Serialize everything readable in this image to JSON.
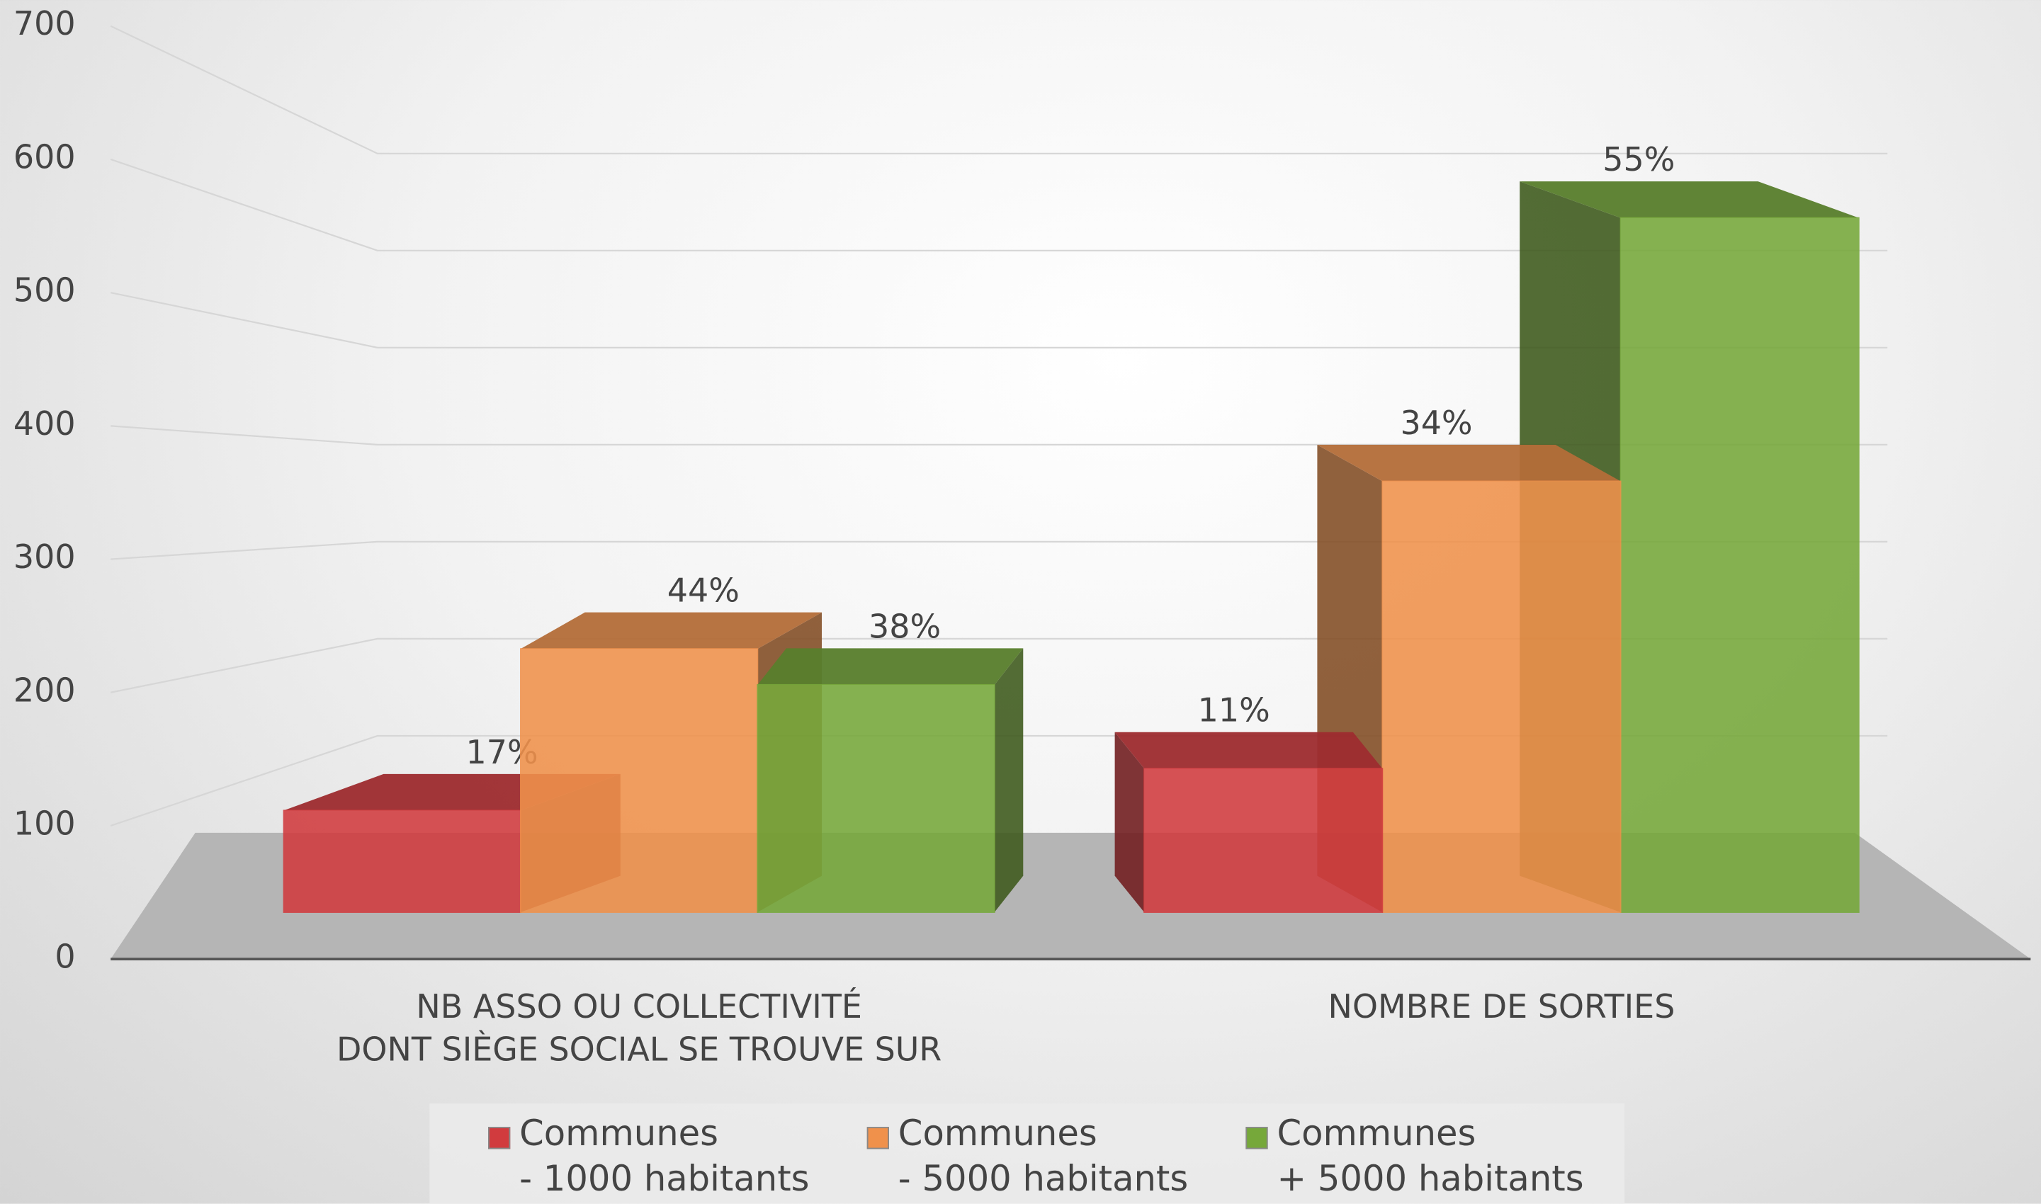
{
  "chart_data": {
    "type": "bar",
    "categories": [
      "NB ASSO OU COLLECTIVITÉ\nDONT SIÈGE SOCIAL SE TROUVE SUR",
      "NOMBRE DE SORTIES"
    ],
    "series": [
      {
        "name": "Communes\n- 1000 habitants",
        "color": "#d13b3e",
        "values": [
          85,
          120
        ],
        "value_labels": [
          "17%",
          "11%"
        ]
      },
      {
        "name": "Communes\n- 5000 habitants",
        "color": "#f0914b",
        "values": [
          220,
          360
        ],
        "value_labels": [
          "44%",
          "34%"
        ]
      },
      {
        "name": "Communes\n+ 5000 habitants",
        "color": "#76a83a",
        "values": [
          190,
          580
        ],
        "value_labels": [
          "38%",
          "55%"
        ]
      }
    ],
    "ylim": [
      0,
      700
    ],
    "yticks": [
      0,
      100,
      200,
      300,
      400,
      500,
      600,
      700
    ],
    "grid": true,
    "legend": "bottom"
  }
}
